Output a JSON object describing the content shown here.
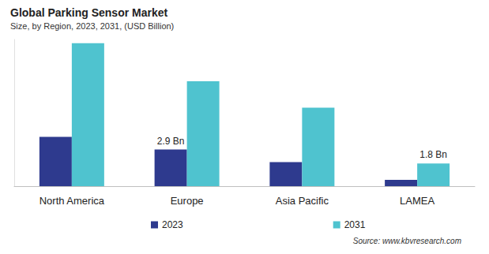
{
  "chart_data": {
    "type": "bar",
    "title": "Global Parking Sensor Market",
    "subtitle": "Size, by Region, 2023, 2031, (USD Billion)",
    "source": "Source: www.kbvresearch.com",
    "categories": [
      "North America",
      "Europe",
      "Asia Pacific",
      "LAMEA"
    ],
    "series": [
      {
        "name": "2023",
        "color": "#2e3a8e",
        "values": [
          3.9,
          2.9,
          1.9,
          0.5
        ],
        "value_labels": [
          null,
          "2.9 Bn",
          null,
          null
        ]
      },
      {
        "name": "2031",
        "color": "#4fc3cf",
        "values": [
          11.3,
          8.3,
          6.2,
          1.8
        ],
        "value_labels": [
          null,
          null,
          null,
          "1.8 Bn"
        ]
      }
    ],
    "ylim": [
      0,
      11.6
    ],
    "grid": false,
    "legend": "bottom",
    "data_labels": true,
    "tick_labels": "x"
  }
}
